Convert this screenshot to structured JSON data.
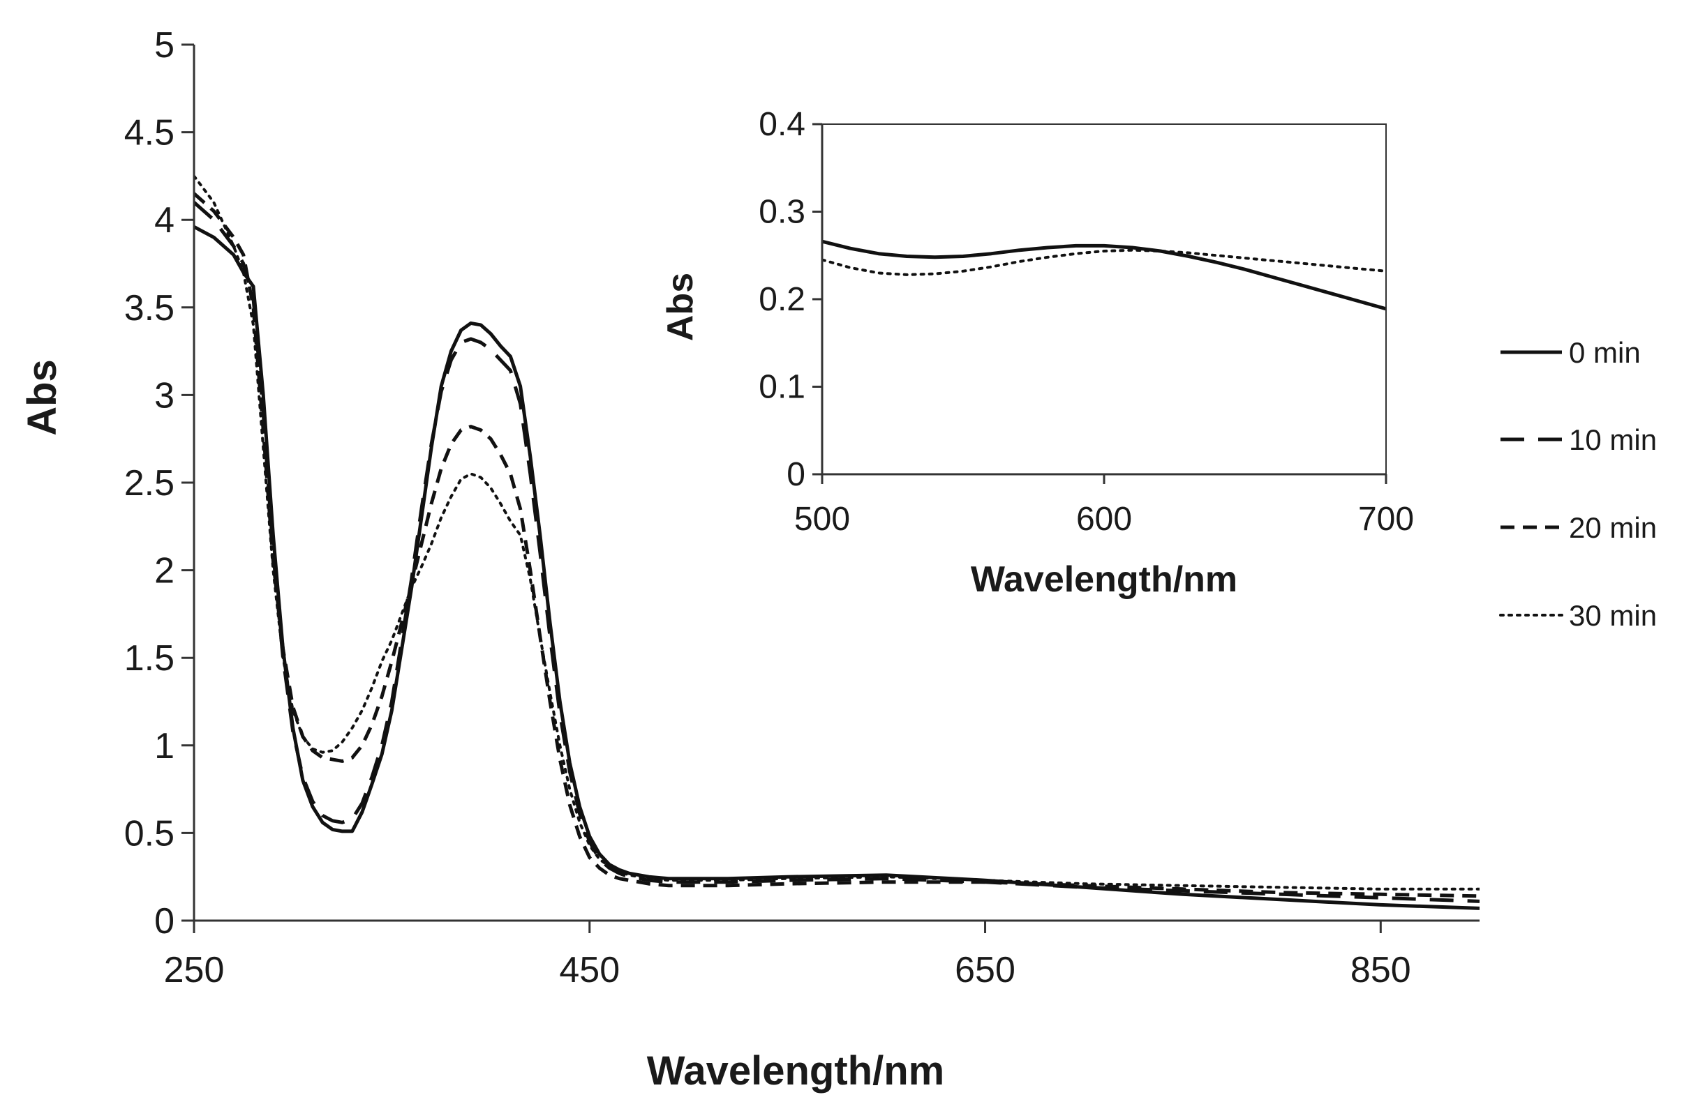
{
  "chart_data": [
    {
      "type": "line",
      "xlabel": "Wavelength/nm",
      "ylabel": "Abs",
      "xlim": [
        250,
        900
      ],
      "ylim": [
        0,
        5
      ],
      "xticks": [
        "250",
        "450",
        "650",
        "850"
      ],
      "yticks": [
        "0",
        "0.5",
        "1",
        "1.5",
        "2",
        "2.5",
        "3",
        "3.5",
        "4",
        "4.5",
        "5"
      ],
      "grid": false,
      "legend_position": "right",
      "series": [
        {
          "name": "0 min",
          "dash": "solid",
          "x": [
            250,
            260,
            270,
            275,
            280,
            285,
            290,
            295,
            300,
            305,
            310,
            315,
            320,
            325,
            330,
            335,
            340,
            345,
            350,
            355,
            360,
            365,
            370,
            375,
            380,
            385,
            390,
            395,
            400,
            405,
            410,
            415,
            420,
            425,
            430,
            435,
            440,
            445,
            450,
            455,
            460,
            465,
            470,
            475,
            480,
            490,
            500,
            520,
            550,
            600,
            650,
            700,
            750,
            800,
            850,
            900
          ],
          "y": [
            3.96,
            3.9,
            3.8,
            3.7,
            3.62,
            3.0,
            2.2,
            1.55,
            1.1,
            0.8,
            0.65,
            0.56,
            0.52,
            0.51,
            0.51,
            0.62,
            0.78,
            0.95,
            1.2,
            1.55,
            1.9,
            2.3,
            2.7,
            3.05,
            3.25,
            3.37,
            3.41,
            3.4,
            3.35,
            3.28,
            3.22,
            3.05,
            2.65,
            2.2,
            1.7,
            1.25,
            0.9,
            0.65,
            0.48,
            0.38,
            0.32,
            0.29,
            0.27,
            0.26,
            0.25,
            0.24,
            0.24,
            0.24,
            0.25,
            0.26,
            0.23,
            0.19,
            0.15,
            0.12,
            0.09,
            0.07
          ]
        },
        {
          "name": "10 min",
          "dash": "long-dash",
          "x": [
            250,
            260,
            270,
            275,
            280,
            285,
            290,
            295,
            300,
            305,
            310,
            315,
            320,
            325,
            330,
            335,
            340,
            345,
            350,
            355,
            360,
            365,
            370,
            375,
            380,
            385,
            390,
            395,
            400,
            405,
            410,
            415,
            420,
            425,
            430,
            435,
            440,
            445,
            450,
            455,
            460,
            465,
            470,
            475,
            480,
            490,
            500,
            520,
            550,
            600,
            650,
            700,
            750,
            800,
            850,
            900
          ],
          "y": [
            4.1,
            4.0,
            3.85,
            3.75,
            3.55,
            2.9,
            2.1,
            1.5,
            1.08,
            0.82,
            0.68,
            0.6,
            0.57,
            0.56,
            0.58,
            0.67,
            0.82,
            1.0,
            1.25,
            1.6,
            1.95,
            2.35,
            2.72,
            3.02,
            3.2,
            3.3,
            3.32,
            3.3,
            3.26,
            3.2,
            3.14,
            2.95,
            2.55,
            2.1,
            1.62,
            1.18,
            0.85,
            0.61,
            0.45,
            0.35,
            0.3,
            0.27,
            0.25,
            0.24,
            0.23,
            0.22,
            0.22,
            0.22,
            0.23,
            0.24,
            0.22,
            0.19,
            0.17,
            0.15,
            0.13,
            0.11
          ]
        },
        {
          "name": "20 min",
          "dash": "dash",
          "x": [
            250,
            260,
            270,
            275,
            280,
            285,
            290,
            295,
            300,
            305,
            310,
            315,
            320,
            325,
            330,
            335,
            340,
            345,
            350,
            355,
            360,
            365,
            370,
            375,
            380,
            385,
            390,
            395,
            400,
            405,
            410,
            415,
            420,
            425,
            430,
            435,
            440,
            445,
            450,
            455,
            460,
            465,
            470,
            475,
            480,
            490,
            500,
            520,
            550,
            600,
            650,
            700,
            750,
            800,
            850,
            900
          ],
          "y": [
            4.15,
            4.05,
            3.9,
            3.8,
            3.5,
            2.8,
            2.05,
            1.55,
            1.22,
            1.05,
            0.97,
            0.93,
            0.92,
            0.91,
            0.93,
            1.0,
            1.12,
            1.28,
            1.48,
            1.7,
            1.92,
            2.15,
            2.38,
            2.58,
            2.72,
            2.8,
            2.82,
            2.8,
            2.75,
            2.66,
            2.55,
            2.35,
            2.0,
            1.62,
            1.25,
            0.92,
            0.66,
            0.48,
            0.36,
            0.3,
            0.26,
            0.24,
            0.23,
            0.22,
            0.21,
            0.2,
            0.2,
            0.2,
            0.21,
            0.22,
            0.22,
            0.2,
            0.18,
            0.16,
            0.15,
            0.14
          ]
        },
        {
          "name": "30 min",
          "dash": "dot",
          "x": [
            250,
            260,
            270,
            275,
            280,
            285,
            290,
            295,
            300,
            305,
            310,
            315,
            320,
            325,
            330,
            335,
            340,
            345,
            350,
            355,
            360,
            365,
            370,
            375,
            380,
            385,
            390,
            395,
            400,
            405,
            410,
            415,
            420,
            425,
            430,
            435,
            440,
            445,
            450,
            455,
            460,
            465,
            470,
            475,
            480,
            490,
            500,
            520,
            550,
            600,
            650,
            700,
            750,
            800,
            850,
            900
          ],
          "y": [
            4.25,
            4.1,
            3.85,
            3.7,
            3.4,
            2.7,
            2.0,
            1.5,
            1.2,
            1.05,
            0.98,
            0.96,
            0.97,
            1.02,
            1.1,
            1.2,
            1.33,
            1.48,
            1.6,
            1.75,
            1.9,
            2.02,
            2.15,
            2.3,
            2.42,
            2.52,
            2.55,
            2.53,
            2.47,
            2.38,
            2.28,
            2.2,
            1.95,
            1.62,
            1.3,
            1.0,
            0.75,
            0.56,
            0.43,
            0.35,
            0.31,
            0.28,
            0.26,
            0.25,
            0.24,
            0.23,
            0.23,
            0.23,
            0.24,
            0.25,
            0.23,
            0.21,
            0.2,
            0.19,
            0.18,
            0.18
          ]
        }
      ]
    },
    {
      "type": "line",
      "xlabel": "Wavelength/nm",
      "ylabel": "Abs",
      "xlim": [
        500,
        700
      ],
      "ylim": [
        0,
        0.4
      ],
      "xticks": [
        "500",
        "600",
        "700"
      ],
      "yticks": [
        "0",
        "0.1",
        "0.2",
        "0.3",
        "0.4"
      ],
      "grid": false,
      "series": [
        {
          "dash": "solid",
          "x": [
            500,
            510,
            520,
            530,
            540,
            550,
            560,
            570,
            580,
            590,
            600,
            610,
            620,
            630,
            640,
            650,
            660,
            670,
            680,
            690,
            700
          ],
          "y": [
            0.266,
            0.258,
            0.252,
            0.249,
            0.248,
            0.249,
            0.252,
            0.256,
            0.259,
            0.261,
            0.261,
            0.259,
            0.255,
            0.249,
            0.242,
            0.234,
            0.225,
            0.216,
            0.207,
            0.198,
            0.189
          ]
        },
        {
          "dash": "dot",
          "x": [
            500,
            510,
            520,
            530,
            540,
            550,
            560,
            570,
            580,
            590,
            600,
            610,
            620,
            630,
            640,
            650,
            660,
            670,
            680,
            690,
            700
          ],
          "y": [
            0.245,
            0.236,
            0.23,
            0.228,
            0.229,
            0.232,
            0.237,
            0.243,
            0.248,
            0.252,
            0.255,
            0.256,
            0.255,
            0.253,
            0.25,
            0.247,
            0.244,
            0.241,
            0.238,
            0.235,
            0.232
          ]
        }
      ]
    }
  ]
}
